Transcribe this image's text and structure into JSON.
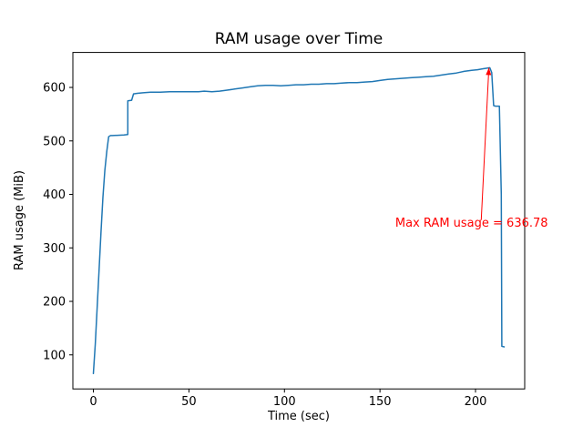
{
  "chart_data": {
    "type": "line",
    "title": "RAM usage over Time",
    "xlabel": "Time (sec)",
    "ylabel": "RAM usage (MiB)",
    "xlim": [
      -10.75,
      225.75
    ],
    "ylim": [
      36.3,
      665.4
    ],
    "x_ticks": [
      0,
      50,
      100,
      150,
      200
    ],
    "y_ticks": [
      100,
      200,
      300,
      400,
      500,
      600
    ],
    "grid": false,
    "legend": "none",
    "max_value": 636.78,
    "series": [
      {
        "name": "RAM usage",
        "color": "#1f77b4",
        "points": [
          [
            0,
            65
          ],
          [
            1,
            120
          ],
          [
            2,
            190
          ],
          [
            3,
            260
          ],
          [
            4,
            330
          ],
          [
            5,
            395
          ],
          [
            6,
            445
          ],
          [
            7,
            480
          ],
          [
            8,
            508
          ],
          [
            9,
            510
          ],
          [
            10,
            510
          ],
          [
            16,
            511
          ],
          [
            18,
            512
          ],
          [
            18,
            575
          ],
          [
            20,
            576
          ],
          [
            21,
            588
          ],
          [
            23,
            589
          ],
          [
            26,
            590
          ],
          [
            30,
            591
          ],
          [
            35,
            591
          ],
          [
            40,
            592
          ],
          [
            45,
            592
          ],
          [
            50,
            592
          ],
          [
            55,
            592
          ],
          [
            58,
            593
          ],
          [
            62,
            592
          ],
          [
            66,
            593
          ],
          [
            70,
            595
          ],
          [
            74,
            597
          ],
          [
            78,
            599
          ],
          [
            82,
            601
          ],
          [
            86,
            603
          ],
          [
            90,
            604
          ],
          [
            94,
            604
          ],
          [
            98,
            603
          ],
          [
            102,
            604
          ],
          [
            106,
            605
          ],
          [
            110,
            605
          ],
          [
            114,
            606
          ],
          [
            118,
            606
          ],
          [
            122,
            607
          ],
          [
            126,
            607
          ],
          [
            130,
            608
          ],
          [
            134,
            609
          ],
          [
            138,
            609
          ],
          [
            142,
            610
          ],
          [
            146,
            611
          ],
          [
            150,
            613
          ],
          [
            154,
            615
          ],
          [
            158,
            616
          ],
          [
            162,
            617
          ],
          [
            166,
            618
          ],
          [
            170,
            619
          ],
          [
            174,
            620
          ],
          [
            178,
            621
          ],
          [
            182,
            623
          ],
          [
            186,
            625
          ],
          [
            190,
            627
          ],
          [
            194,
            630
          ],
          [
            198,
            632
          ],
          [
            201,
            633
          ],
          [
            204,
            635
          ],
          [
            206,
            636
          ],
          [
            207.5,
            636.78
          ],
          [
            208.5,
            628
          ],
          [
            209.5,
            566
          ],
          [
            210.5,
            565
          ],
          [
            212.5,
            565
          ],
          [
            213.5,
            400
          ],
          [
            213.8,
            116
          ],
          [
            215,
            115
          ]
        ]
      }
    ],
    "annotation": {
      "text": "Max RAM usage = 636.78",
      "color": "#ff0000",
      "tip": [
        207,
        636.78
      ],
      "tail": [
        203,
        352
      ],
      "text_pos": [
        158,
        340
      ]
    }
  }
}
